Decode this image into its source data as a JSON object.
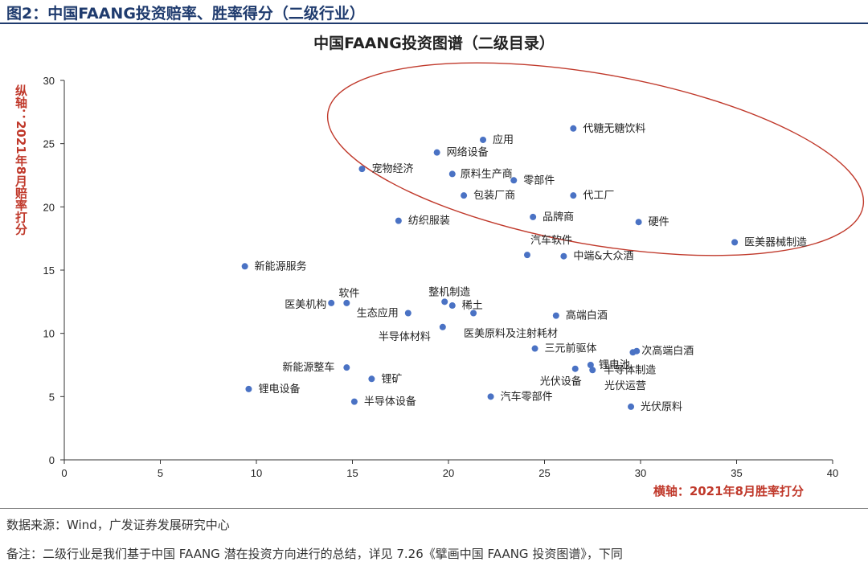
{
  "figure_title": "图2：中国FAANG投资赔率、胜率得分（二级行业）",
  "source": "数据来源：Wind，广发证券发展研究中心",
  "note": "备注：二级行业是我们基于中国 FAANG 潜在投资方向进行的总结，详见 7.26《擘画中国 FAANG 投资图谱》，下同",
  "colors": {
    "point": "#4a72c4",
    "ellipse": "#c0392b",
    "axis_label": "#c0392b",
    "title_bar": "#1f3b6e"
  },
  "chart_data": {
    "type": "scatter",
    "title": "中国FAANG投资图谱（二级目录）",
    "xlabel": "横轴：2021年8月胜率打分",
    "ylabel": "纵轴：2021年8月赔率打分",
    "xlim": [
      0,
      40
    ],
    "ylim": [
      0,
      30
    ],
    "xticks": [
      0,
      5,
      10,
      15,
      20,
      25,
      30,
      35,
      40
    ],
    "yticks": [
      0,
      5,
      10,
      15,
      20,
      25,
      30
    ],
    "grid": false,
    "points": [
      {
        "label": "代糖无糖饮料",
        "x": 26.5,
        "y": 26.2
      },
      {
        "label": "应用",
        "x": 21.8,
        "y": 25.3
      },
      {
        "label": "网络设备",
        "x": 19.4,
        "y": 24.3
      },
      {
        "label": "宠物经济",
        "x": 15.5,
        "y": 23.0
      },
      {
        "label": "原料生产商",
        "x": 20.2,
        "y": 22.6
      },
      {
        "label": "零部件",
        "x": 23.4,
        "y": 22.1
      },
      {
        "label": "包装厂商",
        "x": 20.8,
        "y": 20.9
      },
      {
        "label": "代工厂",
        "x": 26.5,
        "y": 20.9
      },
      {
        "label": "纺织服装",
        "x": 17.4,
        "y": 18.9
      },
      {
        "label": "品牌商",
        "x": 24.4,
        "y": 19.2
      },
      {
        "label": "硬件",
        "x": 29.9,
        "y": 18.8
      },
      {
        "label": "医美器械制造",
        "x": 34.9,
        "y": 17.2
      },
      {
        "label": "汽车软件",
        "x": 24.1,
        "y": 16.2
      },
      {
        "label": "中端&大众酒",
        "x": 26.0,
        "y": 16.1
      },
      {
        "label": "新能源服务",
        "x": 9.4,
        "y": 15.3
      },
      {
        "label": "医美机构",
        "x": 13.9,
        "y": 12.4
      },
      {
        "label": "软件",
        "x": 14.7,
        "y": 12.4
      },
      {
        "label": "生态应用",
        "x": 17.9,
        "y": 11.6
      },
      {
        "label": "整机制造",
        "x": 19.8,
        "y": 12.5
      },
      {
        "label": "稀土",
        "x": 20.2,
        "y": 12.2
      },
      {
        "label": "",
        "x": 21.3,
        "y": 11.6
      },
      {
        "label": "高端白酒",
        "x": 25.6,
        "y": 11.4
      },
      {
        "label": "半导体材料",
        "x": 19.7,
        "y": 10.5
      },
      {
        "label": "医美原料及注射耗材",
        "x": 0,
        "y": 0,
        "hidden": true
      },
      {
        "label": "三元前驱体",
        "x": 24.5,
        "y": 8.8
      },
      {
        "label": "次高端白酒",
        "x": 29.8,
        "y": 8.6
      },
      {
        "label": "",
        "x": 29.6,
        "y": 8.5
      },
      {
        "label": "锂电池",
        "x": 27.4,
        "y": 7.5
      },
      {
        "label": "半导体制造",
        "x": 27.5,
        "y": 7.1
      },
      {
        "label": "光伏设备",
        "x": 26.6,
        "y": 7.2
      },
      {
        "label": "新能源整车",
        "x": 14.7,
        "y": 7.3
      },
      {
        "label": "锂矿",
        "x": 16.0,
        "y": 6.4
      },
      {
        "label": "锂电设备",
        "x": 9.6,
        "y": 5.6
      },
      {
        "label": "半导体设备",
        "x": 15.1,
        "y": 4.6
      },
      {
        "label": "汽车零部件",
        "x": 22.2,
        "y": 5.0
      },
      {
        "label": "光伏运营",
        "x": 0,
        "y": 0,
        "hidden": true
      },
      {
        "label": "光伏原料",
        "x": 29.5,
        "y": 4.2
      }
    ],
    "annotation": "ellipse around upper-right cluster"
  }
}
